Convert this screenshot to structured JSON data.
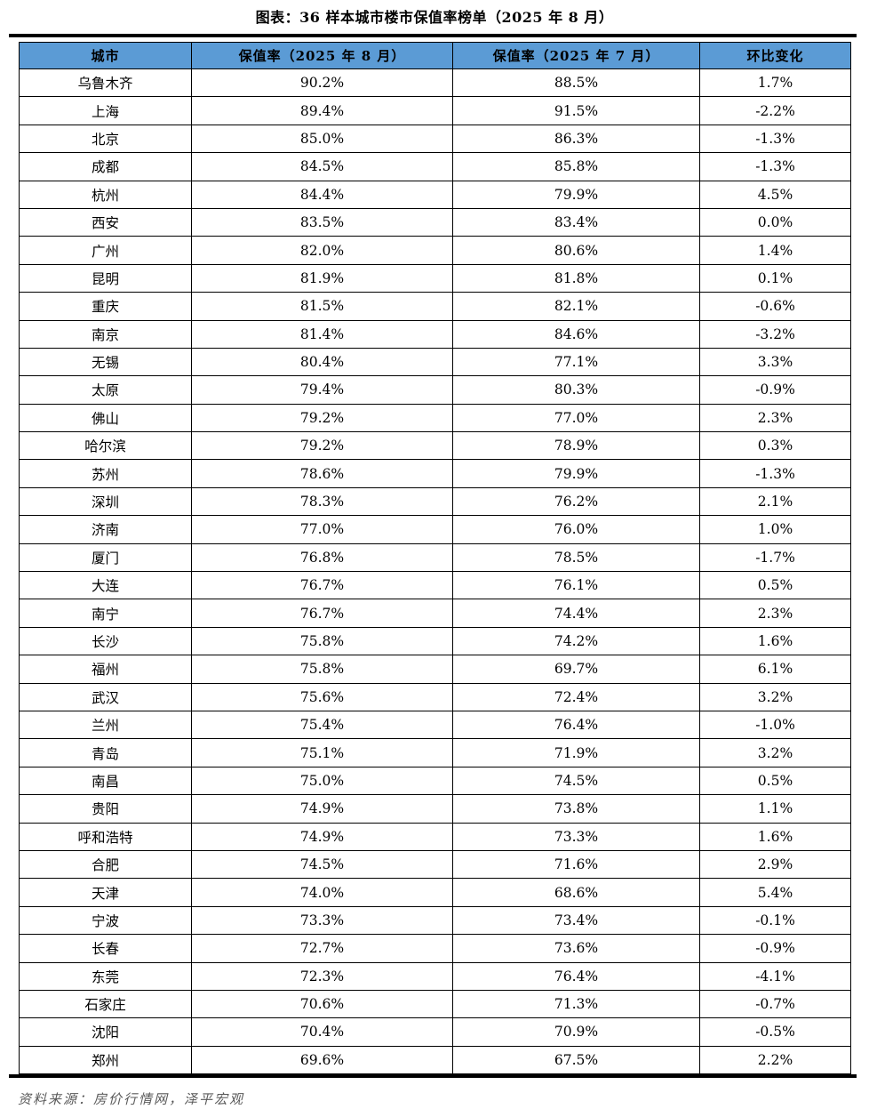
{
  "title": "图表：36 样本城市楼市保值率榜单（2025 年 8 月）",
  "source_note": "资料来源：房价行情网，泽平宏观",
  "colors": {
    "header_bg": "#5B9BD5",
    "header_text": "#000000",
    "rule": "#000000",
    "body_text": "#000000",
    "source_text": "#595959"
  },
  "chart_data": {
    "type": "table",
    "title": "图表：36 样本城市楼市保值率榜单（2025 年 8 月）",
    "columns": [
      "城市",
      "保值率（2025 年 8 月）",
      "保值率（2025 年 7 月）",
      "环比变化"
    ],
    "rows": [
      [
        "乌鲁木齐",
        "90.2%",
        "88.5%",
        "1.7%"
      ],
      [
        "上海",
        "89.4%",
        "91.5%",
        "-2.2%"
      ],
      [
        "北京",
        "85.0%",
        "86.3%",
        "-1.3%"
      ],
      [
        "成都",
        "84.5%",
        "85.8%",
        "-1.3%"
      ],
      [
        "杭州",
        "84.4%",
        "79.9%",
        "4.5%"
      ],
      [
        "西安",
        "83.5%",
        "83.4%",
        "0.0%"
      ],
      [
        "广州",
        "82.0%",
        "80.6%",
        "1.4%"
      ],
      [
        "昆明",
        "81.9%",
        "81.8%",
        "0.1%"
      ],
      [
        "重庆",
        "81.5%",
        "82.1%",
        "-0.6%"
      ],
      [
        "南京",
        "81.4%",
        "84.6%",
        "-3.2%"
      ],
      [
        "无锡",
        "80.4%",
        "77.1%",
        "3.3%"
      ],
      [
        "太原",
        "79.4%",
        "80.3%",
        "-0.9%"
      ],
      [
        "佛山",
        "79.2%",
        "77.0%",
        "2.3%"
      ],
      [
        "哈尔滨",
        "79.2%",
        "78.9%",
        "0.3%"
      ],
      [
        "苏州",
        "78.6%",
        "79.9%",
        "-1.3%"
      ],
      [
        "深圳",
        "78.3%",
        "76.2%",
        "2.1%"
      ],
      [
        "济南",
        "77.0%",
        "76.0%",
        "1.0%"
      ],
      [
        "厦门",
        "76.8%",
        "78.5%",
        "-1.7%"
      ],
      [
        "大连",
        "76.7%",
        "76.1%",
        "0.5%"
      ],
      [
        "南宁",
        "76.7%",
        "74.4%",
        "2.3%"
      ],
      [
        "长沙",
        "75.8%",
        "74.2%",
        "1.6%"
      ],
      [
        "福州",
        "75.8%",
        "69.7%",
        "6.1%"
      ],
      [
        "武汉",
        "75.6%",
        "72.4%",
        "3.2%"
      ],
      [
        "兰州",
        "75.4%",
        "76.4%",
        "-1.0%"
      ],
      [
        "青岛",
        "75.1%",
        "71.9%",
        "3.2%"
      ],
      [
        "南昌",
        "75.0%",
        "74.5%",
        "0.5%"
      ],
      [
        "贵阳",
        "74.9%",
        "73.8%",
        "1.1%"
      ],
      [
        "呼和浩特",
        "74.9%",
        "73.3%",
        "1.6%"
      ],
      [
        "合肥",
        "74.5%",
        "71.6%",
        "2.9%"
      ],
      [
        "天津",
        "74.0%",
        "68.6%",
        "5.4%"
      ],
      [
        "宁波",
        "73.3%",
        "73.4%",
        "-0.1%"
      ],
      [
        "长春",
        "72.7%",
        "73.6%",
        "-0.9%"
      ],
      [
        "东莞",
        "72.3%",
        "76.4%",
        "-4.1%"
      ],
      [
        "石家庄",
        "70.6%",
        "71.3%",
        "-0.7%"
      ],
      [
        "沈阳",
        "70.4%",
        "70.9%",
        "-0.5%"
      ],
      [
        "郑州",
        "69.6%",
        "67.5%",
        "2.2%"
      ]
    ]
  }
}
